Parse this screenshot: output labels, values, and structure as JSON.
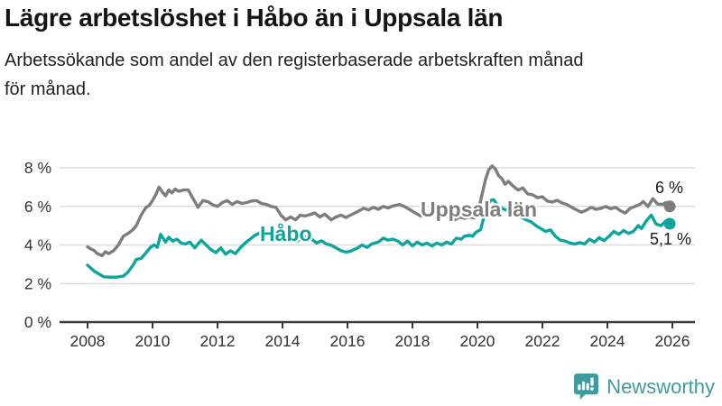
{
  "header": {
    "title": "Lägre arbetslöshet i Håbo än i Uppsala län",
    "subtitle_line1": "Arbetssökande som andel av den registerbaserade arbetskraften månad",
    "subtitle_line2": "för månad."
  },
  "logo": {
    "text": "Newsworthy",
    "color": "#3f9b9c",
    "icon": "newsworthy-speech-bubble-bar-chart-icon"
  },
  "chart_data": {
    "type": "line",
    "title": "Lägre arbetslöshet i Håbo än i Uppsala län",
    "subtitle": "Arbetssökande som andel av den registerbaserade arbetskraften månad för månad.",
    "xlabel": "",
    "ylabel": "",
    "unit": "%",
    "grid": "horizontal",
    "legend_position": "inline-labels",
    "xlim": [
      2007.2,
      2026.7
    ],
    "ylim": [
      0,
      8.6
    ],
    "x_ticks": [
      "2008",
      "2010",
      "2012",
      "2014",
      "2016",
      "2018",
      "2020",
      "2022",
      "2024",
      "2026"
    ],
    "y_ticks": [
      "0 %",
      "2 %",
      "4 %",
      "6 %",
      "8 %"
    ],
    "axis_color": "#3a3a3a",
    "gridline_color": "#dcdcdc",
    "series": [
      {
        "name": "Uppsala län",
        "color": "#7d7d7d",
        "end_label": "6 %",
        "end_value": 6.0,
        "points": [
          [
            2008.0,
            3.9
          ],
          [
            2008.1,
            3.8
          ],
          [
            2008.2,
            3.72
          ],
          [
            2008.3,
            3.55
          ],
          [
            2008.45,
            3.45
          ],
          [
            2008.55,
            3.65
          ],
          [
            2008.65,
            3.55
          ],
          [
            2008.8,
            3.7
          ],
          [
            2008.95,
            4.0
          ],
          [
            2009.1,
            4.45
          ],
          [
            2009.25,
            4.6
          ],
          [
            2009.4,
            4.8
          ],
          [
            2009.5,
            5.0
          ],
          [
            2009.65,
            5.55
          ],
          [
            2009.8,
            5.95
          ],
          [
            2009.9,
            6.05
          ],
          [
            2010.0,
            6.3
          ],
          [
            2010.1,
            6.6
          ],
          [
            2010.2,
            7.0
          ],
          [
            2010.3,
            6.75
          ],
          [
            2010.4,
            6.55
          ],
          [
            2010.5,
            6.85
          ],
          [
            2010.6,
            6.7
          ],
          [
            2010.7,
            6.9
          ],
          [
            2010.8,
            6.78
          ],
          [
            2010.95,
            6.85
          ],
          [
            2011.1,
            6.85
          ],
          [
            2011.25,
            6.4
          ],
          [
            2011.4,
            5.95
          ],
          [
            2011.55,
            6.3
          ],
          [
            2011.7,
            6.25
          ],
          [
            2011.85,
            6.08
          ],
          [
            2012.0,
            6.0
          ],
          [
            2012.15,
            6.2
          ],
          [
            2012.3,
            6.3
          ],
          [
            2012.45,
            6.1
          ],
          [
            2012.6,
            6.25
          ],
          [
            2012.75,
            6.15
          ],
          [
            2012.9,
            6.2
          ],
          [
            2013.05,
            6.28
          ],
          [
            2013.2,
            6.3
          ],
          [
            2013.35,
            6.15
          ],
          [
            2013.5,
            6.1
          ],
          [
            2013.65,
            6.0
          ],
          [
            2013.8,
            5.95
          ],
          [
            2013.95,
            5.55
          ],
          [
            2014.1,
            5.3
          ],
          [
            2014.25,
            5.45
          ],
          [
            2014.4,
            5.3
          ],
          [
            2014.55,
            5.55
          ],
          [
            2014.7,
            5.5
          ],
          [
            2014.85,
            5.58
          ],
          [
            2015.0,
            5.65
          ],
          [
            2015.15,
            5.45
          ],
          [
            2015.3,
            5.6
          ],
          [
            2015.5,
            5.3
          ],
          [
            2015.65,
            5.45
          ],
          [
            2015.8,
            5.55
          ],
          [
            2015.95,
            5.42
          ],
          [
            2016.1,
            5.55
          ],
          [
            2016.3,
            5.72
          ],
          [
            2016.5,
            5.9
          ],
          [
            2016.65,
            5.82
          ],
          [
            2016.8,
            5.95
          ],
          [
            2016.95,
            5.85
          ],
          [
            2017.1,
            6.0
          ],
          [
            2017.25,
            5.92
          ],
          [
            2017.4,
            6.02
          ],
          [
            2017.6,
            6.1
          ],
          [
            2017.75,
            6.0
          ],
          [
            2017.9,
            5.85
          ],
          [
            2018.05,
            5.7
          ],
          [
            2018.25,
            5.5
          ],
          [
            2018.4,
            5.65
          ],
          [
            2018.55,
            5.58
          ],
          [
            2018.7,
            5.65
          ],
          [
            2018.85,
            5.55
          ],
          [
            2019.0,
            5.6
          ],
          [
            2019.15,
            5.45
          ],
          [
            2019.3,
            5.3
          ],
          [
            2019.45,
            5.45
          ],
          [
            2019.6,
            5.38
          ],
          [
            2019.75,
            5.45
          ],
          [
            2019.9,
            5.4
          ],
          [
            2020.0,
            5.55
          ],
          [
            2020.1,
            6.3
          ],
          [
            2020.25,
            7.4
          ],
          [
            2020.35,
            7.9
          ],
          [
            2020.45,
            8.1
          ],
          [
            2020.55,
            7.95
          ],
          [
            2020.65,
            7.6
          ],
          [
            2020.75,
            7.45
          ],
          [
            2020.85,
            7.15
          ],
          [
            2020.95,
            7.3
          ],
          [
            2021.1,
            7.05
          ],
          [
            2021.25,
            6.85
          ],
          [
            2021.4,
            6.95
          ],
          [
            2021.55,
            6.65
          ],
          [
            2021.7,
            6.6
          ],
          [
            2021.85,
            6.45
          ],
          [
            2022.0,
            6.5
          ],
          [
            2022.15,
            6.28
          ],
          [
            2022.3,
            6.22
          ],
          [
            2022.45,
            6.32
          ],
          [
            2022.6,
            6.18
          ],
          [
            2022.75,
            6.1
          ],
          [
            2022.9,
            5.95
          ],
          [
            2023.05,
            5.82
          ],
          [
            2023.2,
            5.7
          ],
          [
            2023.35,
            5.8
          ],
          [
            2023.5,
            5.95
          ],
          [
            2023.65,
            5.85
          ],
          [
            2023.8,
            5.9
          ],
          [
            2023.95,
            6.0
          ],
          [
            2024.1,
            5.88
          ],
          [
            2024.25,
            5.95
          ],
          [
            2024.4,
            5.78
          ],
          [
            2024.55,
            5.65
          ],
          [
            2024.7,
            5.9
          ],
          [
            2024.85,
            6.0
          ],
          [
            2025.0,
            6.1
          ],
          [
            2025.1,
            6.25
          ],
          [
            2025.25,
            6.0
          ],
          [
            2025.4,
            6.4
          ],
          [
            2025.55,
            6.12
          ],
          [
            2025.7,
            6.1
          ],
          [
            2025.8,
            6.2
          ],
          [
            2025.92,
            6.0
          ]
        ]
      },
      {
        "name": "Håbo",
        "color": "#0ea69c",
        "end_label": "5,1 %",
        "end_value": 5.1,
        "points": [
          [
            2008.0,
            2.95
          ],
          [
            2008.1,
            2.8
          ],
          [
            2008.2,
            2.65
          ],
          [
            2008.35,
            2.5
          ],
          [
            2008.5,
            2.35
          ],
          [
            2008.7,
            2.33
          ],
          [
            2008.9,
            2.33
          ],
          [
            2009.1,
            2.38
          ],
          [
            2009.25,
            2.6
          ],
          [
            2009.4,
            2.95
          ],
          [
            2009.5,
            3.25
          ],
          [
            2009.65,
            3.3
          ],
          [
            2009.8,
            3.6
          ],
          [
            2009.95,
            3.9
          ],
          [
            2010.05,
            4.0
          ],
          [
            2010.15,
            3.88
          ],
          [
            2010.25,
            4.55
          ],
          [
            2010.4,
            4.15
          ],
          [
            2010.5,
            4.4
          ],
          [
            2010.62,
            4.2
          ],
          [
            2010.75,
            4.3
          ],
          [
            2010.88,
            4.1
          ],
          [
            2011.0,
            4.05
          ],
          [
            2011.15,
            4.15
          ],
          [
            2011.3,
            3.85
          ],
          [
            2011.5,
            4.25
          ],
          [
            2011.65,
            4.0
          ],
          [
            2011.8,
            3.75
          ],
          [
            2011.95,
            3.6
          ],
          [
            2012.1,
            3.85
          ],
          [
            2012.25,
            3.52
          ],
          [
            2012.4,
            3.7
          ],
          [
            2012.55,
            3.55
          ],
          [
            2012.7,
            3.85
          ],
          [
            2012.85,
            4.1
          ],
          [
            2013.0,
            4.3
          ],
          [
            2013.15,
            4.5
          ],
          [
            2013.3,
            4.62
          ],
          [
            2013.5,
            4.7
          ],
          [
            2013.65,
            4.5
          ],
          [
            2013.8,
            4.35
          ],
          [
            2013.95,
            4.22
          ],
          [
            2014.1,
            4.2
          ],
          [
            2014.25,
            4.4
          ],
          [
            2014.45,
            4.2
          ],
          [
            2014.6,
            4.35
          ],
          [
            2014.75,
            4.45
          ],
          [
            2014.9,
            4.3
          ],
          [
            2015.05,
            4.1
          ],
          [
            2015.2,
            4.22
          ],
          [
            2015.35,
            4.05
          ],
          [
            2015.5,
            3.98
          ],
          [
            2015.65,
            3.85
          ],
          [
            2015.8,
            3.7
          ],
          [
            2015.95,
            3.63
          ],
          [
            2016.1,
            3.68
          ],
          [
            2016.3,
            3.83
          ],
          [
            2016.45,
            4.0
          ],
          [
            2016.6,
            3.87
          ],
          [
            2016.75,
            4.05
          ],
          [
            2016.95,
            4.15
          ],
          [
            2017.1,
            4.35
          ],
          [
            2017.25,
            4.25
          ],
          [
            2017.4,
            4.3
          ],
          [
            2017.55,
            4.2
          ],
          [
            2017.7,
            4.0
          ],
          [
            2017.85,
            4.2
          ],
          [
            2018.0,
            3.95
          ],
          [
            2018.15,
            4.15
          ],
          [
            2018.3,
            4.0
          ],
          [
            2018.45,
            4.1
          ],
          [
            2018.6,
            3.95
          ],
          [
            2018.75,
            4.1
          ],
          [
            2018.9,
            4.0
          ],
          [
            2019.05,
            4.15
          ],
          [
            2019.2,
            4.05
          ],
          [
            2019.35,
            4.35
          ],
          [
            2019.5,
            4.3
          ],
          [
            2019.6,
            4.45
          ],
          [
            2019.75,
            4.5
          ],
          [
            2019.85,
            4.45
          ],
          [
            2019.95,
            4.65
          ],
          [
            2020.1,
            4.8
          ],
          [
            2020.25,
            5.8
          ],
          [
            2020.4,
            6.3
          ],
          [
            2020.5,
            6.35
          ],
          [
            2020.6,
            6.1
          ],
          [
            2020.75,
            5.9
          ],
          [
            2020.9,
            5.8
          ],
          [
            2021.05,
            5.75
          ],
          [
            2021.2,
            5.5
          ],
          [
            2021.35,
            5.45
          ],
          [
            2021.5,
            5.3
          ],
          [
            2021.65,
            5.2
          ],
          [
            2021.8,
            5.0
          ],
          [
            2021.95,
            4.85
          ],
          [
            2022.1,
            4.7
          ],
          [
            2022.25,
            4.78
          ],
          [
            2022.4,
            4.45
          ],
          [
            2022.55,
            4.25
          ],
          [
            2022.7,
            4.2
          ],
          [
            2022.85,
            4.1
          ],
          [
            2023.0,
            4.05
          ],
          [
            2023.15,
            4.12
          ],
          [
            2023.3,
            4.05
          ],
          [
            2023.45,
            4.3
          ],
          [
            2023.6,
            4.15
          ],
          [
            2023.75,
            4.38
          ],
          [
            2023.9,
            4.22
          ],
          [
            2024.05,
            4.45
          ],
          [
            2024.2,
            4.7
          ],
          [
            2024.35,
            4.55
          ],
          [
            2024.5,
            4.75
          ],
          [
            2024.65,
            4.6
          ],
          [
            2024.8,
            4.7
          ],
          [
            2024.95,
            5.0
          ],
          [
            2025.05,
            4.85
          ],
          [
            2025.2,
            5.25
          ],
          [
            2025.35,
            5.55
          ],
          [
            2025.5,
            5.08
          ],
          [
            2025.65,
            5.0
          ],
          [
            2025.8,
            5.25
          ],
          [
            2025.92,
            5.1
          ]
        ]
      }
    ]
  }
}
